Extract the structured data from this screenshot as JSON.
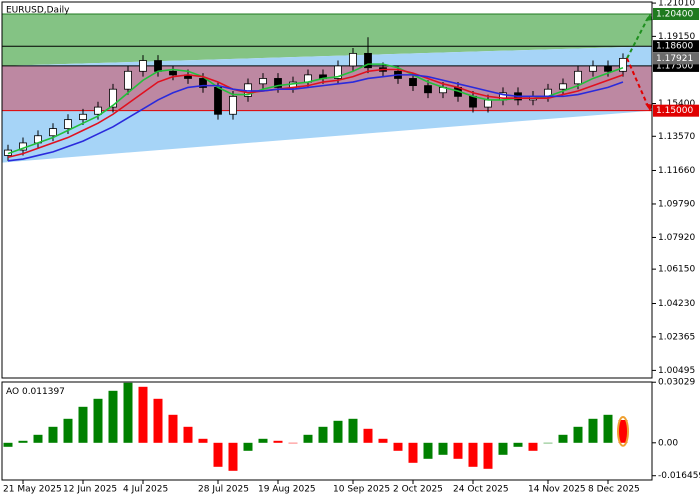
{
  "chart_data": [
    {
      "type": "candlestick",
      "title": "EURUSD,Daily",
      "categories": [
        null,
        "21 May 2025",
        null,
        null,
        null,
        "12 Jun 2025",
        null,
        null,
        null,
        "4 Jul 2025",
        null,
        null,
        null,
        null,
        "28 Jul 2025",
        null,
        null,
        null,
        "19 Aug 2025",
        null,
        null,
        null,
        null,
        "10 Sep 2025",
        null,
        null,
        null,
        "2 Oct 2025",
        null,
        null,
        null,
        "24 Oct 2025",
        null,
        null,
        null,
        null,
        "14 Nov 2025",
        null,
        null,
        null,
        "8 Dec 2025",
        null
      ],
      "open": [
        1.125,
        1.128,
        1.132,
        1.136,
        1.14,
        1.145,
        1.148,
        1.152,
        1.162,
        1.172,
        1.178,
        1.172,
        1.17,
        1.168,
        1.163,
        1.148,
        1.158,
        1.165,
        1.168,
        1.163,
        1.166,
        1.17,
        1.168,
        1.175,
        1.182,
        1.174,
        1.172,
        1.168,
        1.164,
        1.16,
        1.163,
        1.158,
        1.152,
        1.156,
        1.16,
        1.156,
        1.158,
        1.162,
        1.165,
        1.172,
        1.175,
        1.172
      ],
      "high": [
        1.131,
        1.135,
        1.139,
        1.143,
        1.148,
        1.151,
        1.155,
        1.165,
        1.175,
        1.181,
        1.181,
        1.175,
        1.173,
        1.171,
        1.166,
        1.161,
        1.168,
        1.171,
        1.171,
        1.169,
        1.173,
        1.173,
        1.178,
        1.185,
        1.191,
        1.177,
        1.175,
        1.171,
        1.167,
        1.166,
        1.166,
        1.161,
        1.159,
        1.163,
        1.163,
        1.161,
        1.165,
        1.168,
        1.175,
        1.178,
        1.178,
        1.182
      ],
      "low": [
        1.122,
        1.125,
        1.129,
        1.133,
        1.137,
        1.142,
        1.145,
        1.149,
        1.159,
        1.169,
        1.169,
        1.167,
        1.165,
        1.16,
        1.145,
        1.145,
        1.155,
        1.162,
        1.16,
        1.16,
        1.163,
        1.165,
        1.165,
        1.172,
        1.171,
        1.169,
        1.165,
        1.161,
        1.157,
        1.157,
        1.155,
        1.149,
        1.149,
        1.153,
        1.153,
        1.153,
        1.155,
        1.159,
        1.162,
        1.169,
        1.169,
        1.169
      ],
      "close": [
        1.128,
        1.132,
        1.136,
        1.14,
        1.145,
        1.148,
        1.152,
        1.162,
        1.172,
        1.178,
        1.172,
        1.17,
        1.168,
        1.163,
        1.148,
        1.158,
        1.165,
        1.168,
        1.163,
        1.166,
        1.17,
        1.168,
        1.175,
        1.182,
        1.174,
        1.172,
        1.168,
        1.164,
        1.16,
        1.163,
        1.158,
        1.152,
        1.156,
        1.16,
        1.156,
        1.158,
        1.162,
        1.165,
        1.172,
        1.175,
        1.172,
        1.17921
      ],
      "series": [
        {
          "color": "#22c03a",
          "values": [
            1.126,
            1.129,
            1.132,
            1.135,
            1.139,
            1.143,
            1.147,
            1.153,
            1.16,
            1.167,
            1.172,
            1.173,
            1.172,
            1.169,
            1.163,
            1.159,
            1.159,
            1.162,
            1.164,
            1.165,
            1.166,
            1.168,
            1.169,
            1.172,
            1.176,
            1.176,
            1.174,
            1.17,
            1.166,
            1.163,
            1.161,
            1.158,
            1.156,
            1.156,
            1.157,
            1.157,
            1.158,
            1.161,
            1.164,
            1.168,
            1.171,
            1.174
          ]
        },
        {
          "color": "#e01020",
          "values": [
            1.124,
            1.126,
            1.129,
            1.132,
            1.135,
            1.139,
            1.143,
            1.148,
            1.154,
            1.16,
            1.166,
            1.169,
            1.17,
            1.169,
            1.166,
            1.162,
            1.16,
            1.161,
            1.162,
            1.163,
            1.164,
            1.166,
            1.167,
            1.169,
            1.172,
            1.173,
            1.173,
            1.171,
            1.168,
            1.165,
            1.163,
            1.16,
            1.158,
            1.157,
            1.157,
            1.157,
            1.157,
            1.159,
            1.161,
            1.164,
            1.167,
            1.17
          ]
        },
        {
          "color": "#2a2adc",
          "values": [
            1.122,
            1.123,
            1.125,
            1.127,
            1.13,
            1.133,
            1.137,
            1.141,
            1.146,
            1.151,
            1.156,
            1.16,
            1.163,
            1.164,
            1.164,
            1.162,
            1.161,
            1.161,
            1.162,
            1.162,
            1.163,
            1.164,
            1.165,
            1.166,
            1.168,
            1.169,
            1.17,
            1.17,
            1.169,
            1.167,
            1.165,
            1.163,
            1.161,
            1.159,
            1.158,
            1.158,
            1.158,
            1.158,
            1.159,
            1.161,
            1.163,
            1.166
          ]
        }
      ],
      "ylim": [
        1.0007,
        1.2107
      ],
      "yticks": [
        {
          "value": 1.2101,
          "label": "1.21010"
        },
        {
          "value": 1.1915,
          "label": "1.19150"
        },
        {
          "value": 1.154,
          "label": "1.15400"
        },
        {
          "value": 1.1357,
          "label": "1.13570"
        },
        {
          "value": 1.1166,
          "label": "1.11660"
        },
        {
          "value": 1.0979,
          "label": "1.09790"
        },
        {
          "value": 1.0792,
          "label": "1.07920"
        },
        {
          "value": 1.0615,
          "label": "1.06150"
        },
        {
          "value": 1.0423,
          "label": "1.04230"
        },
        {
          "value": 1.02365,
          "label": "1.02365"
        },
        {
          "value": 1.00495,
          "label": "1.00495"
        }
      ],
      "levels": [
        {
          "value": 1.204,
          "label": "1.20400",
          "color": "#1f7a1f"
        },
        {
          "value": 1.186,
          "label": "1.18600",
          "color": "#000000"
        },
        {
          "value": 1.175,
          "label": "1.17500",
          "color": "#000000"
        },
        {
          "value": 1.15,
          "label": "1.15000",
          "color": "#e00000"
        }
      ],
      "channel": {
        "upper": [
          1.175,
          1.186
        ],
        "lower": [
          1.121,
          1.15
        ]
      }
    },
    {
      "type": "bar",
      "name": "AO",
      "up_color": "#008000",
      "down_color": "#ff0000",
      "values": [
        -0.002,
        0.001,
        0.004,
        0.008,
        0.012,
        0.018,
        0.022,
        0.026,
        0.03,
        0.028,
        0.022,
        0.014,
        0.008,
        0.002,
        -0.012,
        -0.014,
        -0.004,
        0.002,
        0.001,
        0.0,
        0.004,
        0.008,
        0.011,
        0.012,
        0.007,
        0.002,
        -0.004,
        -0.01,
        -0.008,
        -0.006,
        -0.008,
        -0.012,
        -0.013,
        -0.006,
        -0.002,
        -0.004,
        0.0,
        0.004,
        0.008,
        0.012,
        0.014,
        0.011397
      ],
      "ylim": [
        -0.0186,
        0.0304
      ],
      "yticks": [
        {
          "value": 0.03029,
          "label": "0.03029"
        },
        {
          "value": 0,
          "label": "0.00"
        },
        {
          "value": -0.016459,
          "label": "-0.016459"
        }
      ]
    }
  ]
}
